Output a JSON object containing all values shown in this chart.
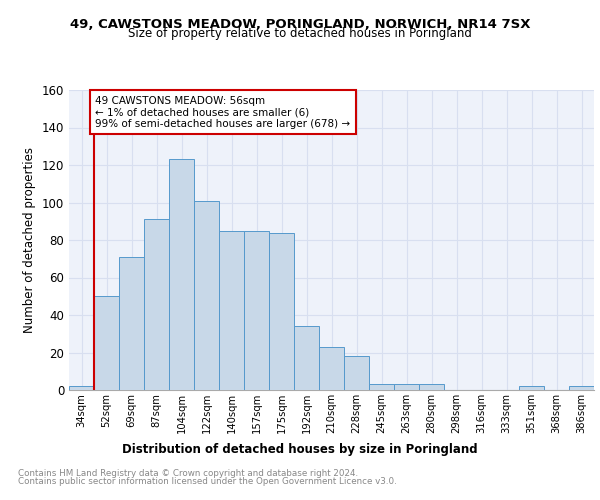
{
  "title": "49, CAWSTONS MEADOW, PORINGLAND, NORWICH, NR14 7SX",
  "subtitle": "Size of property relative to detached houses in Poringland",
  "xlabel": "Distribution of detached houses by size in Poringland",
  "ylabel": "Number of detached properties",
  "categories": [
    "34sqm",
    "52sqm",
    "69sqm",
    "87sqm",
    "104sqm",
    "122sqm",
    "140sqm",
    "157sqm",
    "175sqm",
    "192sqm",
    "210sqm",
    "228sqm",
    "245sqm",
    "263sqm",
    "280sqm",
    "298sqm",
    "316sqm",
    "333sqm",
    "351sqm",
    "368sqm",
    "386sqm"
  ],
  "values": [
    2,
    50,
    71,
    91,
    123,
    101,
    85,
    85,
    84,
    34,
    23,
    18,
    3,
    3,
    3,
    0,
    0,
    0,
    2,
    0,
    2
  ],
  "bar_color": "#c8d8e8",
  "bar_edge_color": "#5599cc",
  "red_line_x": 1.0,
  "annotation_text": "49 CAWSTONS MEADOW: 56sqm\n← 1% of detached houses are smaller (6)\n99% of semi-detached houses are larger (678) →",
  "annotation_box_color": "#ffffff",
  "annotation_box_edge": "#cc0000",
  "ylim": [
    0,
    160
  ],
  "yticks": [
    0,
    20,
    40,
    60,
    80,
    100,
    120,
    140,
    160
  ],
  "grid_color": "#d8dff0",
  "background_color": "#eef2fa",
  "footer_line1": "Contains HM Land Registry data © Crown copyright and database right 2024.",
  "footer_line2": "Contains public sector information licensed under the Open Government Licence v3.0."
}
